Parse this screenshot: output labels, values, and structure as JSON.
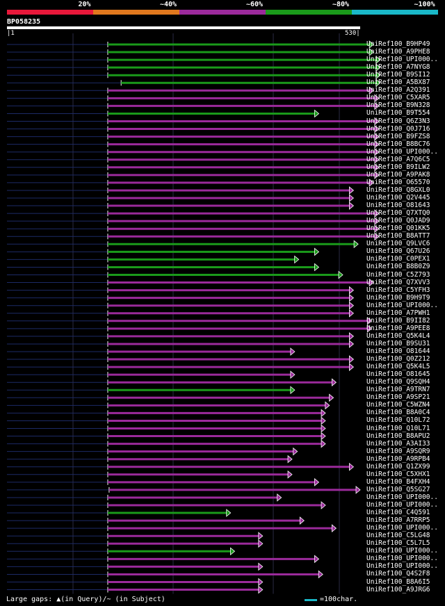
{
  "legend": {
    "segments": [
      {
        "label": "20%",
        "color": "#e8183a"
      },
      {
        "label": "~40%",
        "color": "#e0781e"
      },
      {
        "label": "~60%",
        "color": "#9b2a9b"
      },
      {
        "label": "~80%",
        "color": "#1a9a1a"
      },
      {
        "label": "~100%",
        "color": "#1ab8c8"
      }
    ]
  },
  "query": {
    "id": "BP058235",
    "start": "1",
    "end": "530"
  },
  "footer": {
    "note": "Large gaps: ▲(in Query)/~ (in Subject)",
    "scale": "=100char."
  },
  "chart_data": {
    "type": "alignment",
    "query_length": 530,
    "hits": [
      {
        "name": "UniRef100_B9HP49",
        "start": 152,
        "end": 550,
        "identity": "~80%"
      },
      {
        "name": "UniRef100_A9PHE8",
        "start": 152,
        "end": 550,
        "identity": "~80%"
      },
      {
        "name": "UniRef100_UPI000..",
        "start": 152,
        "end": 560,
        "identity": "~80%"
      },
      {
        "name": "UniRef100_A7NYG8",
        "start": 152,
        "end": 560,
        "identity": "~80%"
      },
      {
        "name": "UniRef100_B9SI12",
        "start": 152,
        "end": 560,
        "identity": "~80%"
      },
      {
        "name": "UniRef100_A5BX87",
        "start": 172,
        "end": 560,
        "identity": "~80%"
      },
      {
        "name": "UniRef100_A2Q391",
        "start": 152,
        "end": 550,
        "identity": "~60%"
      },
      {
        "name": "UniRef100_C5XAR5",
        "start": 152,
        "end": 558,
        "identity": "~60%"
      },
      {
        "name": "UniRef100_B9N328",
        "start": 152,
        "end": 558,
        "identity": "~60%"
      },
      {
        "name": "UniRef100_B9T554",
        "start": 152,
        "end": 468,
        "identity": "~80%"
      },
      {
        "name": "UniRef100_Q6Z3N3",
        "start": 152,
        "end": 558,
        "identity": "~60%"
      },
      {
        "name": "UniRef100_Q0J716",
        "start": 152,
        "end": 558,
        "identity": "~60%"
      },
      {
        "name": "UniRef100_B9FZS8",
        "start": 152,
        "end": 558,
        "identity": "~60%"
      },
      {
        "name": "UniRef100_B8BC76",
        "start": 152,
        "end": 558,
        "identity": "~60%"
      },
      {
        "name": "UniRef100_UPI000..",
        "start": 152,
        "end": 558,
        "identity": "~60%"
      },
      {
        "name": "UniRef100_A7Q6C5",
        "start": 152,
        "end": 558,
        "identity": "~60%"
      },
      {
        "name": "UniRef100_B9ILW2",
        "start": 152,
        "end": 558,
        "identity": "~60%"
      },
      {
        "name": "UniRef100_A9PAK8",
        "start": 152,
        "end": 558,
        "identity": "~60%"
      },
      {
        "name": "UniRef100_O65570",
        "start": 152,
        "end": 550,
        "identity": "~60%"
      },
      {
        "name": "UniRef100_Q8GXL0",
        "start": 152,
        "end": 520,
        "identity": "~60%"
      },
      {
        "name": "UniRef100_Q2V445",
        "start": 152,
        "end": 520,
        "identity": "~60%"
      },
      {
        "name": "UniRef100_O81643",
        "start": 152,
        "end": 520,
        "identity": "~60%"
      },
      {
        "name": "UniRef100_Q7XTQ0",
        "start": 152,
        "end": 558,
        "identity": "~60%"
      },
      {
        "name": "UniRef100_Q0JAD9",
        "start": 152,
        "end": 558,
        "identity": "~60%"
      },
      {
        "name": "UniRef100_Q01KK5",
        "start": 152,
        "end": 558,
        "identity": "~60%"
      },
      {
        "name": "UniRef100_B8ATT7",
        "start": 152,
        "end": 558,
        "identity": "~60%"
      },
      {
        "name": "UniRef100_Q9LVC6",
        "start": 152,
        "end": 527,
        "identity": "~80%"
      },
      {
        "name": "UniRef100_Q67U26",
        "start": 152,
        "end": 468,
        "identity": "~80%"
      },
      {
        "name": "UniRef100_C0PEX1",
        "start": 152,
        "end": 438,
        "identity": "~80%"
      },
      {
        "name": "UniRef100_B8B0Z9",
        "start": 152,
        "end": 468,
        "identity": "~80%"
      },
      {
        "name": "UniRef100_C5Z793",
        "start": 152,
        "end": 504,
        "identity": "~80%"
      },
      {
        "name": "UniRef100_Q7XVV3",
        "start": 152,
        "end": 550,
        "identity": "~60%"
      },
      {
        "name": "UniRef100_C5YFH3",
        "start": 152,
        "end": 520,
        "identity": "~60%"
      },
      {
        "name": "UniRef100_B9H9T9",
        "start": 152,
        "end": 520,
        "identity": "~60%"
      },
      {
        "name": "UniRef100_UPI000..",
        "start": 152,
        "end": 520,
        "identity": "~60%"
      },
      {
        "name": "UniRef100_A7PWH1",
        "start": 152,
        "end": 520,
        "identity": "~60%"
      },
      {
        "name": "UniRef100_B9II82",
        "start": 152,
        "end": 547,
        "identity": "~60%"
      },
      {
        "name": "UniRef100_A9PEE8",
        "start": 152,
        "end": 547,
        "identity": "~60%"
      },
      {
        "name": "UniRef100_Q5K4L4",
        "start": 152,
        "end": 520,
        "identity": "~60%"
      },
      {
        "name": "UniRef100_B9SU31",
        "start": 152,
        "end": 520,
        "identity": "~60%"
      },
      {
        "name": "UniRef100_O81644",
        "start": 152,
        "end": 432,
        "identity": "~60%"
      },
      {
        "name": "UniRef100_Q0Z212",
        "start": 152,
        "end": 520,
        "identity": "~60%"
      },
      {
        "name": "UniRef100_Q5K4L5",
        "start": 152,
        "end": 520,
        "identity": "~60%"
      },
      {
        "name": "UniRef100_O81645",
        "start": 152,
        "end": 432,
        "identity": "~60%"
      },
      {
        "name": "UniRef100_Q9SQH4",
        "start": 152,
        "end": 494,
        "identity": "~60%"
      },
      {
        "name": "UniRef100_A9TRN7",
        "start": 152,
        "end": 432,
        "identity": "~80%"
      },
      {
        "name": "UniRef100_A9SP21",
        "start": 152,
        "end": 490,
        "identity": "~60%"
      },
      {
        "name": "UniRef100_C5WZN4",
        "start": 152,
        "end": 484,
        "identity": "~60%"
      },
      {
        "name": "UniRef100_B8A0C4",
        "start": 152,
        "end": 478,
        "identity": "~60%"
      },
      {
        "name": "UniRef100_Q10L72",
        "start": 152,
        "end": 478,
        "identity": "~60%"
      },
      {
        "name": "UniRef100_Q10L71",
        "start": 152,
        "end": 478,
        "identity": "~60%"
      },
      {
        "name": "UniRef100_B8APU2",
        "start": 152,
        "end": 478,
        "identity": "~60%"
      },
      {
        "name": "UniRef100_A3AI33",
        "start": 152,
        "end": 478,
        "identity": "~60%"
      },
      {
        "name": "UniRef100_A9SQR9",
        "start": 152,
        "end": 436,
        "identity": "~60%"
      },
      {
        "name": "UniRef100_A9RPB4",
        "start": 152,
        "end": 428,
        "identity": "~60%"
      },
      {
        "name": "UniRef100_Q1ZX99",
        "start": 152,
        "end": 520,
        "identity": "~60%"
      },
      {
        "name": "UniRef100_C5XHX1",
        "start": 152,
        "end": 428,
        "identity": "~60%"
      },
      {
        "name": "UniRef100_B4FXH4",
        "start": 152,
        "end": 468,
        "identity": "~60%"
      },
      {
        "name": "UniRef100_Q5SG27",
        "start": 154,
        "end": 530,
        "identity": "~60%"
      },
      {
        "name": "UniRef100_UPI000..",
        "start": 152,
        "end": 412,
        "identity": "~60%"
      },
      {
        "name": "UniRef100_UPI000..",
        "start": 152,
        "end": 478,
        "identity": "~60%"
      },
      {
        "name": "UniRef100_C4Q591",
        "start": 152,
        "end": 336,
        "identity": "~80%"
      },
      {
        "name": "UniRef100_A7RRP5",
        "start": 152,
        "end": 446,
        "identity": "~60%"
      },
      {
        "name": "UniRef100_UPI000..",
        "start": 152,
        "end": 494,
        "identity": "~60%"
      },
      {
        "name": "UniRef100_C5LG48",
        "start": 152,
        "end": 384,
        "identity": "~60%"
      },
      {
        "name": "UniRef100_C5L7L5",
        "start": 152,
        "end": 384,
        "identity": "~60%"
      },
      {
        "name": "UniRef100_UPI000..",
        "start": 152,
        "end": 342,
        "identity": "~80%"
      },
      {
        "name": "UniRef100_UPI000..",
        "start": 152,
        "end": 468,
        "identity": "~60%"
      },
      {
        "name": "UniRef100_UPI000..",
        "start": 152,
        "end": 384,
        "identity": "~60%"
      },
      {
        "name": "UniRef100_Q4S2F8",
        "start": 152,
        "end": 474,
        "identity": "~60%"
      },
      {
        "name": "UniRef100_B8A6I5",
        "start": 152,
        "end": 384,
        "identity": "~60%"
      },
      {
        "name": "UniRef100_A9JRG6",
        "start": 152,
        "end": 384,
        "identity": "~60%"
      }
    ]
  }
}
